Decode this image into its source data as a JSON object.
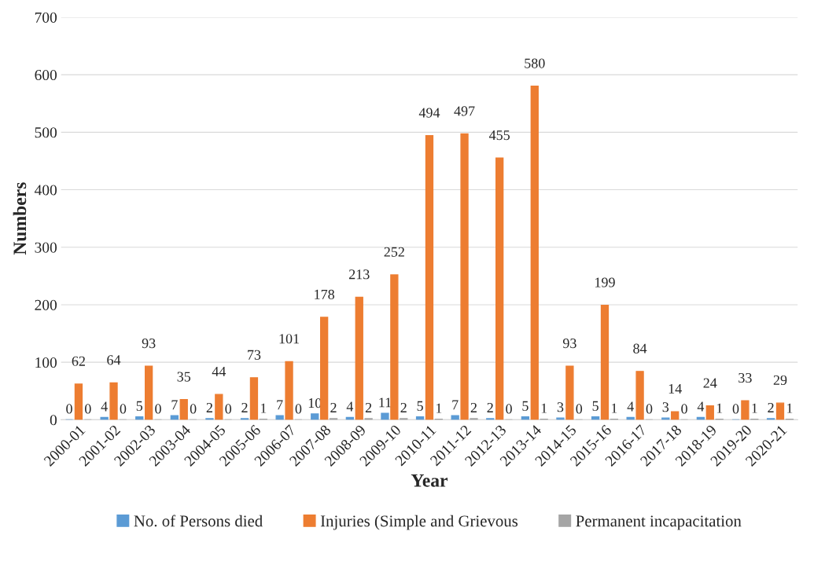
{
  "chart_data": {
    "type": "bar",
    "xlabel": "Year",
    "ylabel": "Numbers",
    "categories": [
      "2000-01",
      "2001-02",
      "2002-03",
      "2003-04",
      "2004-05",
      "2005-06",
      "2006-07",
      "2007-08",
      "2008-09",
      "2009-10",
      "2010-11",
      "2011-12",
      "2012-13",
      "2013-14",
      "2014-15",
      "2015-16",
      "2016-17",
      "2017-18",
      "2018-19",
      "2019-20",
      "2020-21"
    ],
    "series": [
      {
        "name": "No. of Persons died",
        "color": "#5b9bd5",
        "values": [
          0,
          4,
          5,
          7,
          2,
          2,
          7,
          10,
          4,
          11,
          5,
          7,
          2,
          5,
          3,
          5,
          4,
          3,
          4,
          0,
          2
        ]
      },
      {
        "name": "Injuries (Simple and Grievous",
        "color": "#ed7d31",
        "values": [
          62,
          64,
          93,
          35,
          44,
          73,
          101,
          178,
          213,
          252,
          494,
          497,
          455,
          580,
          93,
          199,
          84,
          14,
          24,
          33,
          29
        ]
      },
      {
        "name": "Permanent incapacitation",
        "color": "#a5a5a5",
        "values": [
          0,
          0,
          0,
          0,
          0,
          1,
          0,
          2,
          2,
          2,
          1,
          2,
          0,
          1,
          0,
          1,
          0,
          0,
          1,
          1,
          1
        ]
      }
    ],
    "ylim": [
      0,
      700
    ],
    "yticks": [
      0,
      100,
      200,
      300,
      400,
      500,
      600,
      700
    ],
    "grid": "y",
    "legend": "bottom",
    "data_labels": true
  }
}
